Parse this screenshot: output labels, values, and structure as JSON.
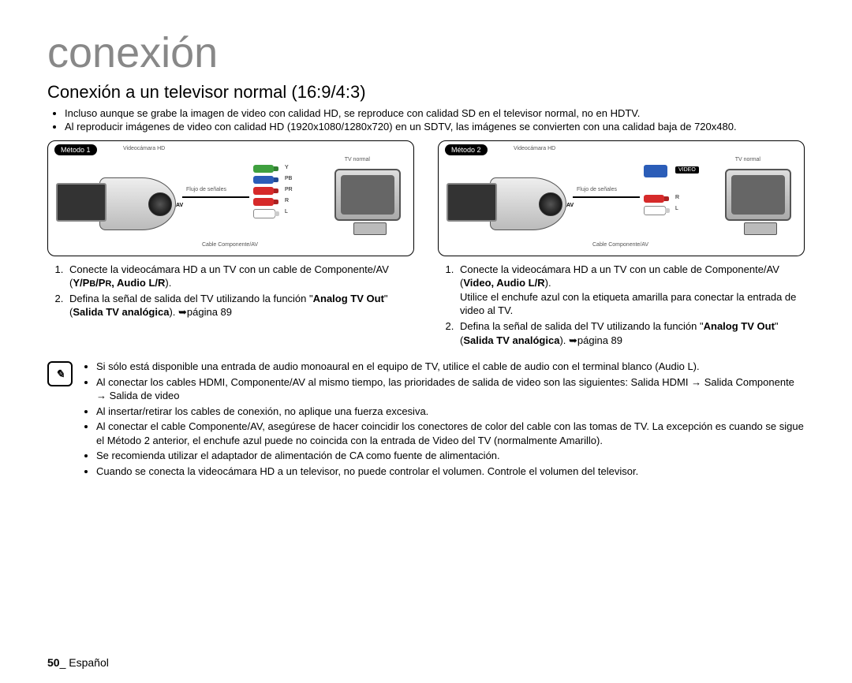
{
  "chapter_title": "conexión",
  "section_title": "Conexión a un televisor normal (16:9/4:3)",
  "intro_bullets": [
    "Incluso aunque se grabe la imagen de video con calidad HD, se reproduce con calidad SD en el televisor normal, no en HDTV.",
    "Al reproducir imágenes de video con calidad HD (1920x1080/1280x720) en un SDTV, las imágenes se convierten con una calidad baja de 720x480."
  ],
  "methods": {
    "m1": {
      "label": "Método 1",
      "camcorder_label": "Videocámara HD",
      "tv_label": "TV normal",
      "flow_label": "Flujo de señales",
      "av_label": "AV",
      "cable_label": "Cable Componente/AV",
      "plug_labels": {
        "y": "Y",
        "pb": "PB",
        "pr": "PR",
        "r": "R",
        "l": "L"
      },
      "plug_colors": {
        "green": "#3fa03f",
        "blue": "#2b5db8",
        "red": "#d62a2a",
        "red2": "#d62a2a",
        "white": "#ffffff"
      },
      "steps": [
        "Conecte la videocámara HD a un TV con un cable de Componente/AV (<b>Y/P<small>B</small>/P<small>R</small>, Audio L/R</b>).",
        "Defina la señal de salida del TV utilizando la función \"<b>Analog TV Out</b>\" (<b>Salida TV analógica</b>). ➥página 89"
      ]
    },
    "m2": {
      "label": "Método 2",
      "camcorder_label": "Videocámara HD",
      "tv_label": "TV normal",
      "flow_label": "Flujo de señales",
      "av_label": "AV",
      "cable_label": "Cable Componente/AV",
      "video_label": "VIDEO",
      "plug_colors": {
        "blue": "#2b5db8",
        "red": "#d62a2a",
        "white": "#ffffff"
      },
      "plug_labels": {
        "r": "R",
        "l": "L"
      },
      "steps": [
        "Conecte la videocámara HD a un TV con un cable de Componente/AV (<b>Video, Audio L/R</b>).<br>Utilice el enchufe azul con la etiqueta amarilla para conectar la entrada de video al TV.",
        "Defina la señal de salida del TV utilizando la función \"<b>Analog TV Out</b>\" (<b>Salida TV analógica</b>). ➥página 89"
      ]
    }
  },
  "notes": [
    "Si sólo está disponible una entrada de audio monoaural en el equipo de TV, utilice el cable de audio con el terminal blanco (Audio L).",
    "Al conectar los cables HDMI, Componente/AV al mismo tiempo, las prioridades de salida de video son las siguientes: Salida HDMI → Salida Componente → Salida de video",
    "Al insertar/retirar los cables de conexión, no aplique una fuerza excesiva.",
    "Al conectar el cable Componente/AV, asegúrese de hacer coincidir los conectores de color del cable con las tomas de TV. La excepción es cuando se sigue el Método 2 anterior, el enchufe azul puede no coincida con la entrada de Video del TV (normalmente Amarillo).",
    "Se recomienda utilizar el adaptador de alimentación de CA como fuente de alimentación.",
    "Cuando se conecta la videocámara HD a un televisor, no puede controlar el volumen. Controle el volumen del televisor."
  ],
  "footer": {
    "page": "50",
    "sep": "_ ",
    "lang": "Español"
  },
  "style": {
    "title_color": "#888888",
    "text_color": "#000000",
    "border_color": "#000000"
  }
}
